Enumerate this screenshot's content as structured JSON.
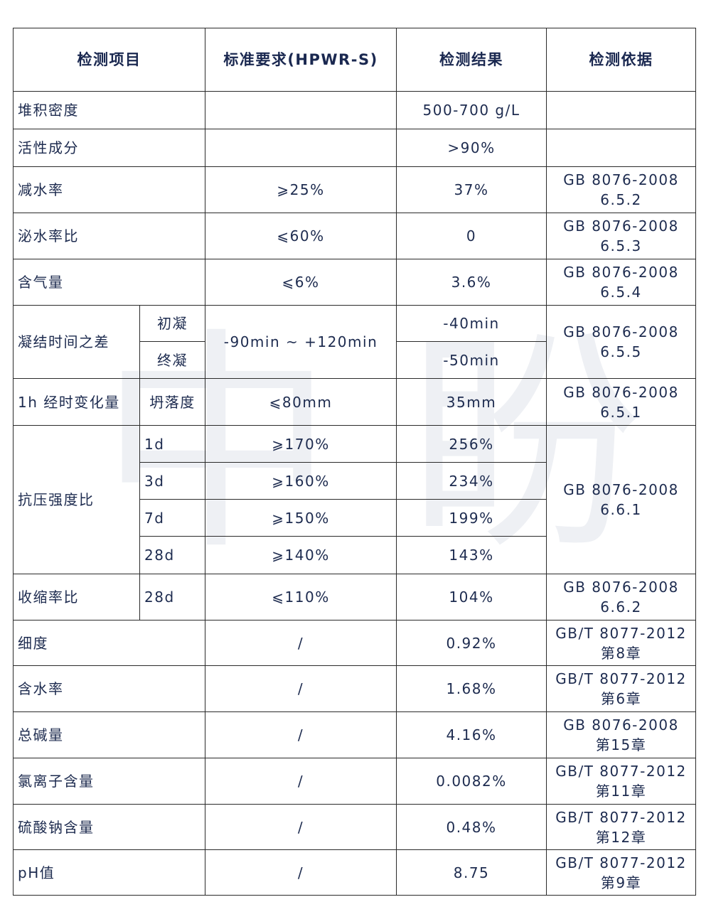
{
  "watermark": "中 盼",
  "headers": [
    "检测项目",
    "标准要求(HPWR-S)",
    "检测结果",
    "检测依据"
  ],
  "rows": {
    "bulk_density": {
      "item": "堆积密度",
      "standard": "",
      "result": "500-700 g/L",
      "ref": [
        "",
        ""
      ]
    },
    "active": {
      "item": "活性成分",
      "standard": "",
      "result": ">90%",
      "ref": [
        "",
        ""
      ]
    },
    "water_reduction": {
      "item": "减水率",
      "standard": "⩾25%",
      "result": "37%",
      "ref": [
        "GB 8076-2008",
        "6.5.2"
      ]
    },
    "bleeding": {
      "item": "泌水率比",
      "standard": "⩽60%",
      "result": "0",
      "ref": [
        "GB 8076-2008",
        "6.5.3"
      ]
    },
    "air": {
      "item": "含气量",
      "standard": "⩽6%",
      "result": "3.6%",
      "ref": [
        "GB 8076-2008",
        "6.5.4"
      ]
    },
    "setting": {
      "item": "凝结时间之差",
      "sub1": "初凝",
      "sub2": "终凝",
      "standard": "-90min ~ +120min",
      "result1": "-40min",
      "result2": "-50min",
      "ref": [
        "GB 8076-2008",
        "6.5.5"
      ]
    },
    "slump": {
      "item": "1h 经时变化量",
      "sub": "坍落度",
      "standard": "⩽80mm",
      "result": "35mm",
      "ref": [
        "GB 8076-2008",
        "6.5.1"
      ]
    },
    "compressive": {
      "item": "抗压强度比",
      "ages": [
        "1d",
        "3d",
        "7d",
        "28d"
      ],
      "standards": [
        "⩾170%",
        "⩾160%",
        "⩾150%",
        "⩾140%"
      ],
      "results": [
        "256%",
        "234%",
        "199%",
        "143%"
      ],
      "ref": [
        "GB 8076-2008",
        "6.6.1"
      ]
    },
    "shrinkage": {
      "item": "收缩率比",
      "sub": "28d",
      "standard": "⩽110%",
      "result": "104%",
      "ref": [
        "GB 8076-2008",
        "6.6.2"
      ]
    },
    "fineness": {
      "item": "细度",
      "standard": "/",
      "result": "0.92%",
      "ref": [
        "GB/T 8077-2012",
        "第8章"
      ]
    },
    "moisture": {
      "item": "含水率",
      "standard": "/",
      "result": "1.68%",
      "ref": [
        "GB/T 8077-2012",
        "第6章"
      ]
    },
    "alkali": {
      "item": "总碱量",
      "standard": "/",
      "result": "4.16%",
      "ref": [
        "GB 8076-2008",
        "第15章"
      ]
    },
    "chloride": {
      "item": "氯离子含量",
      "standard": "/",
      "result": "0.0082%",
      "ref": [
        "GB/T 8077-2012",
        "第11章"
      ]
    },
    "sulfate": {
      "item": "硫酸钠含量",
      "standard": "/",
      "result": "0.48%",
      "ref": [
        "GB/T 8077-2012",
        "第12章"
      ]
    },
    "ph": {
      "item": "pH值",
      "standard": "/",
      "result": "8.75",
      "ref": [
        "GB/T 8077-2012",
        "第9章"
      ]
    }
  }
}
